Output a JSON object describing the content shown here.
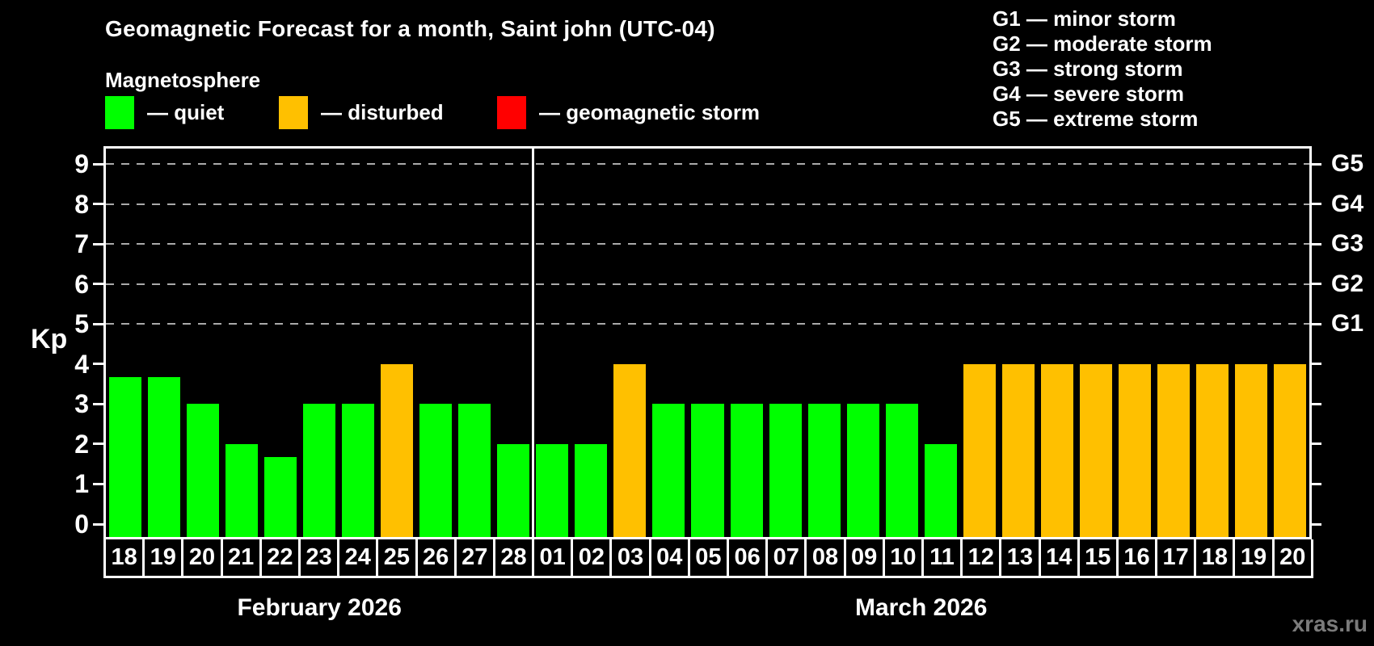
{
  "title": "Geomagnetic Forecast for a month, Saint john (UTC-04)",
  "subtitle": "Magnetosphere",
  "legend": {
    "items": [
      {
        "name": "quiet",
        "label": "— quiet",
        "color": "#00ff00"
      },
      {
        "name": "disturbed",
        "label": "— disturbed",
        "color": "#ffc000"
      },
      {
        "name": "storm",
        "label": "— geomagnetic storm",
        "color": "#ff0000"
      }
    ]
  },
  "g_scale": {
    "items": [
      {
        "label": "G1 — minor storm"
      },
      {
        "label": "G2 — moderate storm"
      },
      {
        "label": "G3 — strong storm"
      },
      {
        "label": "G4 — severe storm"
      },
      {
        "label": "G5 — extreme storm"
      }
    ]
  },
  "watermark": "xras.ru",
  "chart_data": {
    "type": "bar",
    "title": "Geomagnetic Forecast for a month, Saint john (UTC-04)",
    "subtitle": "Magnetosphere",
    "ylabel": "Kp",
    "ylim": [
      0,
      9.4
    ],
    "yticks": [
      0,
      1,
      2,
      3,
      4,
      5,
      6,
      7,
      8,
      9
    ],
    "gridlines_at": [
      5,
      6,
      7,
      8,
      9
    ],
    "grid": "dashed horizontal at G-levels only",
    "legend_position": "top",
    "right_axis": [
      {
        "kp": 5,
        "label": "G1"
      },
      {
        "kp": 6,
        "label": "G2"
      },
      {
        "kp": 7,
        "label": "G3"
      },
      {
        "kp": 8,
        "label": "G4"
      },
      {
        "kp": 9,
        "label": "G5"
      }
    ],
    "month_spans": [
      {
        "label": "February 2026",
        "count": 11
      },
      {
        "label": "March 2026",
        "count": 20
      }
    ],
    "days": [
      "18",
      "19",
      "20",
      "21",
      "22",
      "23",
      "24",
      "25",
      "26",
      "27",
      "28",
      "01",
      "02",
      "03",
      "04",
      "05",
      "06",
      "07",
      "08",
      "09",
      "10",
      "11",
      "12",
      "13",
      "14",
      "15",
      "16",
      "17",
      "18",
      "19",
      "20"
    ],
    "values": [
      3.67,
      3.67,
      3,
      2,
      1.67,
      3,
      3,
      4,
      3,
      3,
      2,
      2,
      2,
      4,
      3,
      3,
      3,
      3,
      3,
      3,
      3,
      2,
      4,
      4,
      4,
      4,
      4,
      4,
      4,
      4,
      4
    ],
    "statuses": [
      "quiet",
      "quiet",
      "quiet",
      "quiet",
      "quiet",
      "quiet",
      "quiet",
      "disturbed",
      "quiet",
      "quiet",
      "quiet",
      "quiet",
      "quiet",
      "disturbed",
      "quiet",
      "quiet",
      "quiet",
      "quiet",
      "quiet",
      "quiet",
      "quiet",
      "quiet",
      "disturbed",
      "disturbed",
      "disturbed",
      "disturbed",
      "disturbed",
      "disturbed",
      "disturbed",
      "disturbed",
      "disturbed"
    ],
    "status_colors": {
      "quiet": "#00ff00",
      "disturbed": "#ffc000",
      "storm": "#ff0000"
    }
  }
}
